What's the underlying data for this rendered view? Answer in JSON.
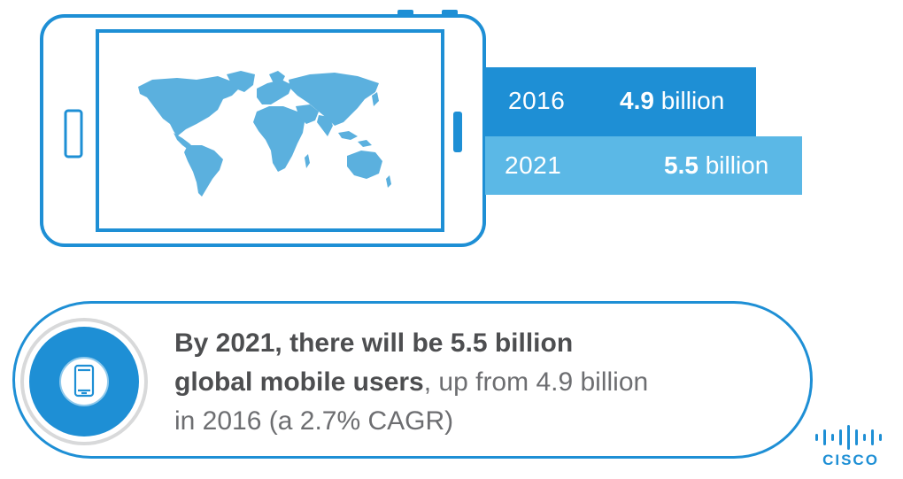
{
  "chart_data": {
    "type": "bar",
    "orientation": "horizontal",
    "categories": [
      "2016",
      "2021"
    ],
    "values": [
      4.9,
      5.5
    ],
    "unit": "billion",
    "value_labels": [
      {
        "number": "4.9",
        "unit": "billion"
      },
      {
        "number": "5.5",
        "unit": "billion"
      }
    ]
  },
  "callout": {
    "line1": "By 2021, there will be 5.5 billion",
    "line2_bold": "global mobile users",
    "line2_rest": ", up from 4.9 billion",
    "line3": "in 2016 (a 2.7% CAGR)"
  },
  "logo": {
    "text": "CISCO"
  },
  "colors": {
    "primary": "#1e8fd5",
    "light": "#5bb8e6",
    "map": "#5bb0de",
    "text": "#6d6e71"
  },
  "icons": {
    "phone": "smartphone-icon",
    "map": "world-map-icon",
    "logo": "cisco-logo"
  }
}
